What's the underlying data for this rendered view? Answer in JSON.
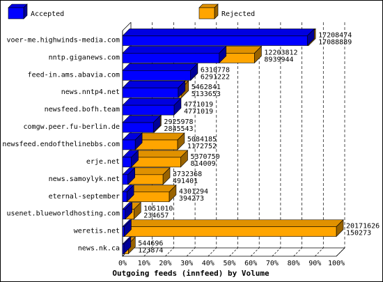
{
  "chart_data": {
    "type": "bar",
    "orientation": "horizontal",
    "stacked": true,
    "title": "Outgoing feeds (innfeed) by Volume",
    "legend": [
      {
        "name": "Accepted",
        "color": "#0000ff"
      },
      {
        "name": "Rejected",
        "color": "#ffa500"
      }
    ],
    "xlim": [
      0,
      100
    ],
    "x_ticks": [
      "0%",
      "10%",
      "20%",
      "30%",
      "40%",
      "50%",
      "60%",
      "70%",
      "80%",
      "90%",
      "100%"
    ],
    "grid": true,
    "rows": [
      {
        "host": "voer-me.highwinds-media.com",
        "total": "17208474",
        "accepted": "17088889",
        "accepted_pct": 86.4,
        "rejected_pct": 0.6
      },
      {
        "host": "nntp.giganews.com",
        "total": "12203812",
        "accepted": "8939944",
        "accepted_pct": 45.2,
        "rejected_pct": 16.5
      },
      {
        "host": "feed-in.ams.abavia.com",
        "total": "6310778",
        "accepted": "6291222",
        "accepted_pct": 31.8,
        "rejected_pct": 0.1
      },
      {
        "host": "news.nntp4.net",
        "total": "5462841",
        "accepted": "5133653",
        "accepted_pct": 26.0,
        "rejected_pct": 1.6
      },
      {
        "host": "newsfeed.bofh.team",
        "total": "4771019",
        "accepted": "4771019",
        "accepted_pct": 24.1,
        "rejected_pct": 0.0
      },
      {
        "host": "comgw.peer.fu-berlin.de",
        "total": "2925978",
        "accepted": "2845543",
        "accepted_pct": 14.4,
        "rejected_pct": 0.4
      },
      {
        "host": "newsfeed.endofthelinebbs.com",
        "total": "5084185",
        "accepted": "1172752",
        "accepted_pct": 5.9,
        "rejected_pct": 19.8
      },
      {
        "host": "erje.net",
        "total": "5370750",
        "accepted": "814009",
        "accepted_pct": 4.1,
        "rejected_pct": 23.1
      },
      {
        "host": "news.samoylyk.net",
        "total": "3732368",
        "accepted": "491401",
        "accepted_pct": 2.5,
        "rejected_pct": 16.4
      },
      {
        "host": "eternal-september",
        "total": "4301294",
        "accepted": "394273",
        "accepted_pct": 2.0,
        "rejected_pct": 19.8
      },
      {
        "host": "usenet.blueworldhosting.com",
        "total": "1051010",
        "accepted": "234657",
        "accepted_pct": 1.2,
        "rejected_pct": 4.1
      },
      {
        "host": "weretis.net",
        "total": "20171626",
        "accepted": "150273",
        "accepted_pct": 0.8,
        "rejected_pct": 99.2
      },
      {
        "host": "news.nk.ca",
        "total": "544696",
        "accepted": "123874",
        "accepted_pct": 0.6,
        "rejected_pct": 2.1
      }
    ]
  }
}
